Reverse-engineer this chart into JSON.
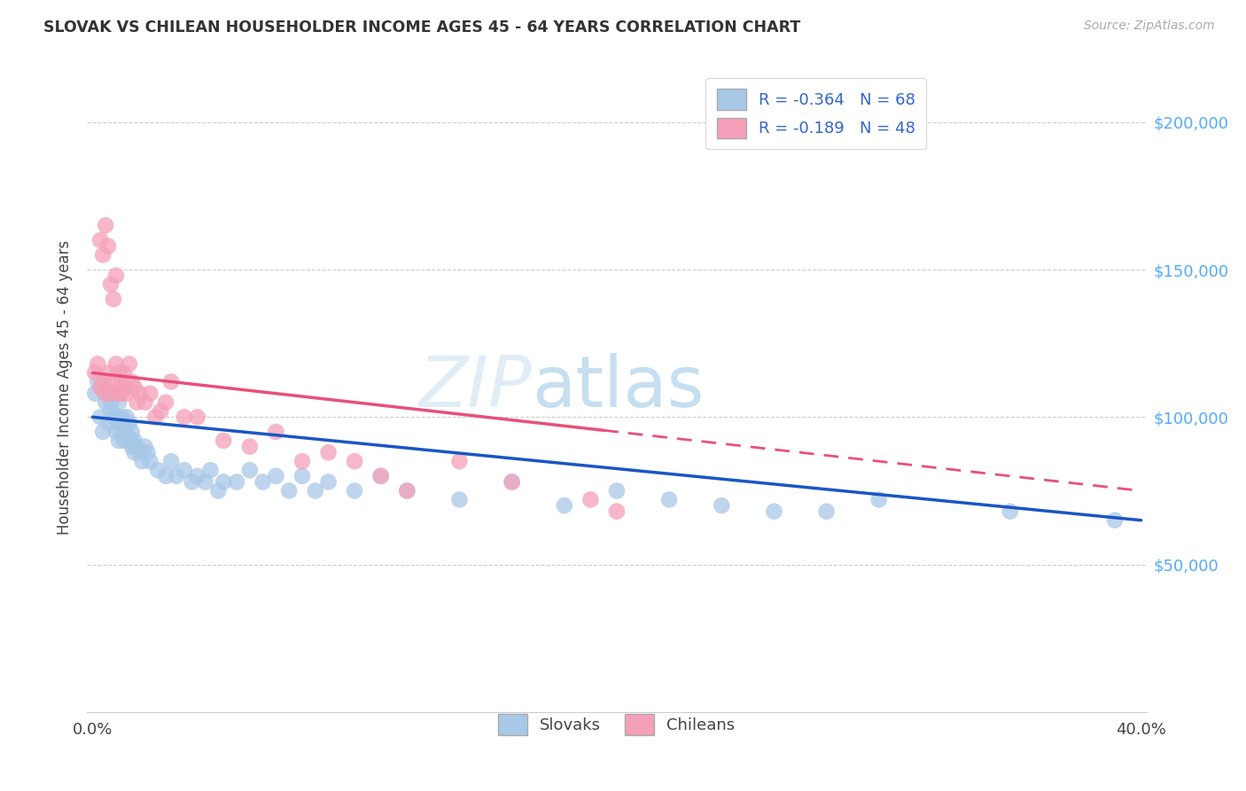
{
  "title": "SLOVAK VS CHILEAN HOUSEHOLDER INCOME AGES 45 - 64 YEARS CORRELATION CHART",
  "source": "Source: ZipAtlas.com",
  "ylabel": "Householder Income Ages 45 - 64 years",
  "xlim": [
    -0.002,
    0.402
  ],
  "ylim": [
    0,
    220000
  ],
  "xticks": [
    0.0,
    0.05,
    0.1,
    0.15,
    0.2,
    0.25,
    0.3,
    0.35,
    0.4
  ],
  "ytick_positions": [
    50000,
    100000,
    150000,
    200000
  ],
  "ytick_labels": [
    "$50,000",
    "$100,000",
    "$150,000",
    "$200,000"
  ],
  "legend_r_slovak": "R = -0.364",
  "legend_n_slovak": "N = 68",
  "legend_r_chilean": "R = -0.189",
  "legend_n_chilean": "N = 48",
  "slovak_color": "#a8c8e8",
  "chilean_color": "#f4a0b8",
  "trend_blue": "#1a56c4",
  "trend_pink": "#e8507a",
  "watermark_color": "#c8dff0",
  "background_color": "#ffffff",
  "grid_color": "#cccccc",
  "slovak_x": [
    0.001,
    0.002,
    0.003,
    0.004,
    0.005,
    0.005,
    0.006,
    0.006,
    0.007,
    0.007,
    0.008,
    0.008,
    0.009,
    0.009,
    0.01,
    0.01,
    0.01,
    0.011,
    0.011,
    0.012,
    0.012,
    0.013,
    0.013,
    0.014,
    0.014,
    0.015,
    0.015,
    0.016,
    0.016,
    0.017,
    0.018,
    0.019,
    0.02,
    0.021,
    0.022,
    0.025,
    0.028,
    0.03,
    0.032,
    0.035,
    0.038,
    0.04,
    0.043,
    0.045,
    0.048,
    0.05,
    0.055,
    0.06,
    0.065,
    0.07,
    0.075,
    0.08,
    0.085,
    0.09,
    0.1,
    0.11,
    0.12,
    0.14,
    0.16,
    0.18,
    0.2,
    0.22,
    0.24,
    0.26,
    0.28,
    0.3,
    0.35,
    0.39
  ],
  "slovak_y": [
    108000,
    112000,
    100000,
    95000,
    105000,
    110000,
    108000,
    98000,
    105000,
    102000,
    100000,
    108000,
    95000,
    100000,
    105000,
    98000,
    92000,
    100000,
    95000,
    98000,
    92000,
    95000,
    100000,
    92000,
    98000,
    90000,
    95000,
    88000,
    92000,
    90000,
    88000,
    85000,
    90000,
    88000,
    85000,
    82000,
    80000,
    85000,
    80000,
    82000,
    78000,
    80000,
    78000,
    82000,
    75000,
    78000,
    78000,
    82000,
    78000,
    80000,
    75000,
    80000,
    75000,
    78000,
    75000,
    80000,
    75000,
    72000,
    78000,
    70000,
    75000,
    72000,
    70000,
    68000,
    68000,
    72000,
    68000,
    65000
  ],
  "chilean_x": [
    0.001,
    0.002,
    0.003,
    0.003,
    0.004,
    0.004,
    0.005,
    0.005,
    0.006,
    0.006,
    0.007,
    0.007,
    0.008,
    0.008,
    0.009,
    0.009,
    0.01,
    0.01,
    0.011,
    0.011,
    0.012,
    0.012,
    0.013,
    0.014,
    0.015,
    0.016,
    0.017,
    0.018,
    0.02,
    0.022,
    0.024,
    0.026,
    0.028,
    0.03,
    0.035,
    0.04,
    0.05,
    0.06,
    0.07,
    0.08,
    0.09,
    0.1,
    0.11,
    0.12,
    0.14,
    0.16,
    0.19,
    0.2
  ],
  "chilean_y": [
    115000,
    118000,
    110000,
    160000,
    112000,
    155000,
    108000,
    165000,
    115000,
    158000,
    108000,
    145000,
    112000,
    140000,
    118000,
    148000,
    108000,
    115000,
    112000,
    108000,
    110000,
    115000,
    108000,
    118000,
    112000,
    110000,
    105000,
    108000,
    105000,
    108000,
    100000,
    102000,
    105000,
    112000,
    100000,
    100000,
    92000,
    90000,
    95000,
    85000,
    88000,
    85000,
    80000,
    75000,
    85000,
    78000,
    72000,
    68000
  ],
  "sk_trend_x0": 0.0,
  "sk_trend_y0": 100000,
  "sk_trend_x1": 0.4,
  "sk_trend_y1": 65000,
  "ch_trend_x0": 0.0,
  "ch_trend_y0": 115000,
  "ch_trend_x1": 0.2,
  "ch_trend_y1": 95000
}
